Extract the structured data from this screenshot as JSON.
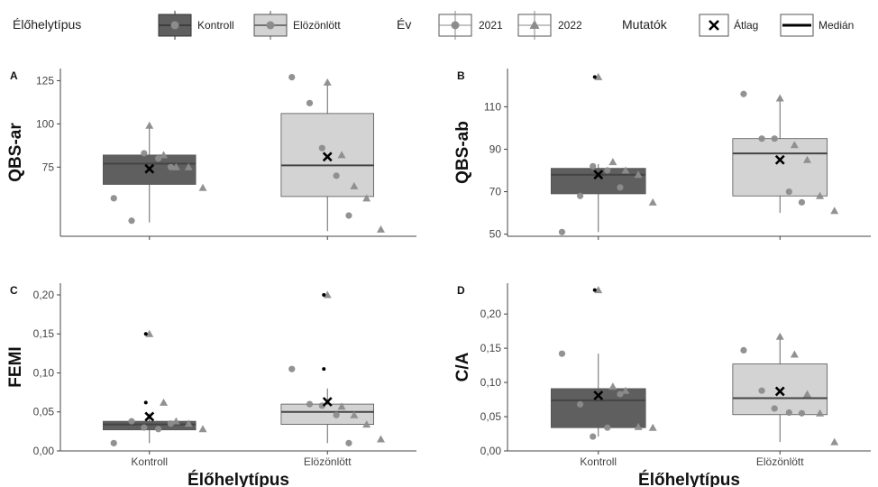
{
  "legend": {
    "habitat_title": "Élőhelytípus",
    "habitat_items": [
      {
        "label": "Kontroll",
        "color": "#5f5f5f"
      },
      {
        "label": "Elözönlött",
        "color": "#d3d3d3"
      }
    ],
    "year_title": "Év",
    "year_items": [
      {
        "label": "2021",
        "shape": "circle"
      },
      {
        "label": "2022",
        "shape": "triangle"
      }
    ],
    "stat_title": "Mutatók",
    "stat_items": [
      {
        "label": "Átlag",
        "shape": "cross"
      },
      {
        "label": "Medián",
        "shape": "line"
      }
    ]
  },
  "colors": {
    "kontroll_fill": "#5f5f5f",
    "elozonlott_fill": "#d3d3d3",
    "point": "#8c8c8c",
    "axis": "#444444"
  },
  "chart_data": [
    {
      "panel": "A",
      "type": "box",
      "ylabel": "QBS-ar",
      "xlabel": "",
      "categories": [
        "Kontroll",
        "Elözönlött"
      ],
      "ylim": [
        35,
        132
      ],
      "yticks": [
        75,
        100,
        125
      ],
      "boxes": [
        {
          "category": "Kontroll",
          "q1": 65,
          "median": 77,
          "q3": 82,
          "whisker_low": 43,
          "whisker_high": 99,
          "mean": 74
        },
        {
          "category": "Elözönlött",
          "q1": 58,
          "median": 76,
          "q3": 106,
          "whisker_low": 38,
          "whisker_high": 124,
          "mean": 81
        }
      ],
      "points": [
        {
          "category": "Kontroll",
          "year": "2021",
          "y": 57
        },
        {
          "category": "Kontroll",
          "year": "2021",
          "y": 44
        },
        {
          "category": "Kontroll",
          "year": "2021",
          "y": 83
        },
        {
          "category": "Kontroll",
          "year": "2021",
          "y": 80
        },
        {
          "category": "Kontroll",
          "year": "2021",
          "y": 75
        },
        {
          "category": "Kontroll",
          "year": "2022",
          "y": 99
        },
        {
          "category": "Kontroll",
          "year": "2022",
          "y": 82
        },
        {
          "category": "Kontroll",
          "year": "2022",
          "y": 75
        },
        {
          "category": "Kontroll",
          "year": "2022",
          "y": 75
        },
        {
          "category": "Kontroll",
          "year": "2022",
          "y": 63
        },
        {
          "category": "Elözönlött",
          "year": "2021",
          "y": 127
        },
        {
          "category": "Elözönlött",
          "year": "2021",
          "y": 112
        },
        {
          "category": "Elözönlött",
          "year": "2021",
          "y": 86
        },
        {
          "category": "Elözönlött",
          "year": "2021",
          "y": 70
        },
        {
          "category": "Elözönlött",
          "year": "2021",
          "y": 47
        },
        {
          "category": "Elözönlött",
          "year": "2022",
          "y": 124
        },
        {
          "category": "Elözönlött",
          "year": "2022",
          "y": 82
        },
        {
          "category": "Elözönlött",
          "year": "2022",
          "y": 64
        },
        {
          "category": "Elözönlött",
          "year": "2022",
          "y": 57
        },
        {
          "category": "Elözönlött",
          "year": "2022",
          "y": 39
        }
      ]
    },
    {
      "panel": "B",
      "type": "box",
      "ylabel": "QBS-ab",
      "xlabel": "",
      "categories": [
        "Kontroll",
        "Elözönlött"
      ],
      "ylim": [
        49,
        128
      ],
      "yticks": [
        50,
        70,
        90,
        110
      ],
      "boxes": [
        {
          "category": "Kontroll",
          "q1": 69,
          "median": 78,
          "q3": 81,
          "whisker_low": 51,
          "whisker_high": 83,
          "mean": 78
        },
        {
          "category": "Elözönlött",
          "q1": 68,
          "median": 88,
          "q3": 95,
          "whisker_low": 60,
          "whisker_high": 114,
          "mean": 85
        }
      ],
      "outliers": [
        {
          "category": "Kontroll",
          "y": 124
        }
      ],
      "points": [
        {
          "category": "Kontroll",
          "year": "2021",
          "y": 51
        },
        {
          "category": "Kontroll",
          "year": "2021",
          "y": 68
        },
        {
          "category": "Kontroll",
          "year": "2021",
          "y": 82
        },
        {
          "category": "Kontroll",
          "year": "2021",
          "y": 80
        },
        {
          "category": "Kontroll",
          "year": "2021",
          "y": 72
        },
        {
          "category": "Kontroll",
          "year": "2022",
          "y": 124
        },
        {
          "category": "Kontroll",
          "year": "2022",
          "y": 84
        },
        {
          "category": "Kontroll",
          "year": "2022",
          "y": 80
        },
        {
          "category": "Kontroll",
          "year": "2022",
          "y": 78
        },
        {
          "category": "Kontroll",
          "year": "2022",
          "y": 65
        },
        {
          "category": "Elözönlött",
          "year": "2021",
          "y": 116
        },
        {
          "category": "Elözönlött",
          "year": "2021",
          "y": 95
        },
        {
          "category": "Elözönlött",
          "year": "2021",
          "y": 95
        },
        {
          "category": "Elözönlött",
          "year": "2021",
          "y": 70
        },
        {
          "category": "Elözönlött",
          "year": "2021",
          "y": 65
        },
        {
          "category": "Elözönlött",
          "year": "2022",
          "y": 114
        },
        {
          "category": "Elözönlött",
          "year": "2022",
          "y": 92
        },
        {
          "category": "Elözönlött",
          "year": "2022",
          "y": 85
        },
        {
          "category": "Elözönlött",
          "year": "2022",
          "y": 68
        },
        {
          "category": "Elözönlött",
          "year": "2022",
          "y": 61
        }
      ]
    },
    {
      "panel": "C",
      "type": "box",
      "ylabel": "FEMI",
      "xlabel": "Élőhelytípus",
      "categories": [
        "Kontroll",
        "Elözönlött"
      ],
      "ylim": [
        0,
        0.215
      ],
      "yticks": [
        0,
        0.05,
        0.1,
        0.15,
        0.2
      ],
      "ytick_labels": [
        "0,00",
        "0,05",
        "0,10",
        "0,15",
        "0,20"
      ],
      "boxes": [
        {
          "category": "Kontroll",
          "q1": 0.027,
          "median": 0.034,
          "q3": 0.038,
          "whisker_low": 0.01,
          "whisker_high": 0.048,
          "mean": 0.044
        },
        {
          "category": "Elözönlött",
          "q1": 0.034,
          "median": 0.05,
          "q3": 0.06,
          "whisker_low": 0.01,
          "whisker_high": 0.08,
          "mean": 0.063
        }
      ],
      "outliers": [
        {
          "category": "Kontroll",
          "y": 0.15
        },
        {
          "category": "Kontroll",
          "y": 0.062
        },
        {
          "category": "Elözönlött",
          "y": 0.2
        },
        {
          "category": "Elözönlött",
          "y": 0.105
        }
      ],
      "points": [
        {
          "category": "Kontroll",
          "year": "2021",
          "y": 0.01
        },
        {
          "category": "Kontroll",
          "year": "2021",
          "y": 0.038
        },
        {
          "category": "Kontroll",
          "year": "2021",
          "y": 0.03
        },
        {
          "category": "Kontroll",
          "year": "2021",
          "y": 0.028
        },
        {
          "category": "Kontroll",
          "year": "2021",
          "y": 0.035
        },
        {
          "category": "Kontroll",
          "year": "2022",
          "y": 0.15
        },
        {
          "category": "Kontroll",
          "year": "2022",
          "y": 0.062
        },
        {
          "category": "Kontroll",
          "year": "2022",
          "y": 0.038
        },
        {
          "category": "Kontroll",
          "year": "2022",
          "y": 0.035
        },
        {
          "category": "Kontroll",
          "year": "2022",
          "y": 0.028
        },
        {
          "category": "Elözönlött",
          "year": "2021",
          "y": 0.105
        },
        {
          "category": "Elözönlött",
          "year": "2021",
          "y": 0.06
        },
        {
          "category": "Elözönlött",
          "year": "2021",
          "y": 0.058
        },
        {
          "category": "Elözönlött",
          "year": "2021",
          "y": 0.046
        },
        {
          "category": "Elözönlött",
          "year": "2021",
          "y": 0.01
        },
        {
          "category": "Elözönlött",
          "year": "2022",
          "y": 0.2
        },
        {
          "category": "Elözönlött",
          "year": "2022",
          "y": 0.057
        },
        {
          "category": "Elözönlött",
          "year": "2022",
          "y": 0.046
        },
        {
          "category": "Elözönlött",
          "year": "2022",
          "y": 0.034
        },
        {
          "category": "Elözönlött",
          "year": "2022",
          "y": 0.015
        }
      ]
    },
    {
      "panel": "D",
      "type": "box",
      "ylabel": "C/A",
      "xlabel": "Élőhelytípus",
      "categories": [
        "Kontroll",
        "Elözönlött"
      ],
      "ylim": [
        0,
        0.245
      ],
      "yticks": [
        0,
        0.05,
        0.1,
        0.15,
        0.2
      ],
      "ytick_labels": [
        "0,00",
        "0,05",
        "0,10",
        "0,15",
        "0,20"
      ],
      "boxes": [
        {
          "category": "Kontroll",
          "q1": 0.034,
          "median": 0.074,
          "q3": 0.091,
          "whisker_low": 0.021,
          "whisker_high": 0.142,
          "mean": 0.081
        },
        {
          "category": "Elözönlött",
          "q1": 0.053,
          "median": 0.077,
          "q3": 0.127,
          "whisker_low": 0.013,
          "whisker_high": 0.167,
          "mean": 0.087
        }
      ],
      "outliers": [
        {
          "category": "Kontroll",
          "y": 0.235
        }
      ],
      "points": [
        {
          "category": "Kontroll",
          "year": "2021",
          "y": 0.142
        },
        {
          "category": "Kontroll",
          "year": "2021",
          "y": 0.068
        },
        {
          "category": "Kontroll",
          "year": "2021",
          "y": 0.021
        },
        {
          "category": "Kontroll",
          "year": "2021",
          "y": 0.034
        },
        {
          "category": "Kontroll",
          "year": "2021",
          "y": 0.083
        },
        {
          "category": "Kontroll",
          "year": "2022",
          "y": 0.235
        },
        {
          "category": "Kontroll",
          "year": "2022",
          "y": 0.094
        },
        {
          "category": "Kontroll",
          "year": "2022",
          "y": 0.088
        },
        {
          "category": "Kontroll",
          "year": "2022",
          "y": 0.035
        },
        {
          "category": "Kontroll",
          "year": "2022",
          "y": 0.034
        },
        {
          "category": "Elözönlött",
          "year": "2021",
          "y": 0.147
        },
        {
          "category": "Elözönlött",
          "year": "2021",
          "y": 0.088
        },
        {
          "category": "Elözönlött",
          "year": "2021",
          "y": 0.062
        },
        {
          "category": "Elözönlött",
          "year": "2021",
          "y": 0.056
        },
        {
          "category": "Elözönlött",
          "year": "2021",
          "y": 0.055
        },
        {
          "category": "Elözönlött",
          "year": "2022",
          "y": 0.167
        },
        {
          "category": "Elözönlött",
          "year": "2022",
          "y": 0.141
        },
        {
          "category": "Elözönlött",
          "year": "2022",
          "y": 0.083
        },
        {
          "category": "Elözönlött",
          "year": "2022",
          "y": 0.055
        },
        {
          "category": "Elözönlött",
          "year": "2022",
          "y": 0.013
        }
      ]
    }
  ]
}
